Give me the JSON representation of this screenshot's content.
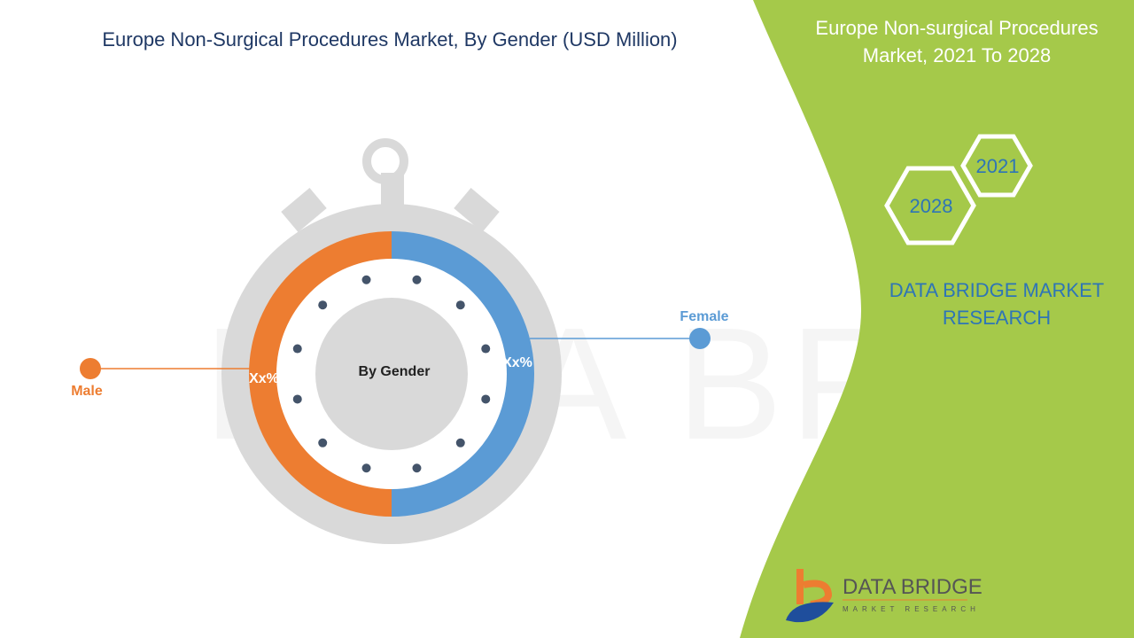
{
  "header": {
    "title": "Europe Non-Surgical Procedures Market, By Gender  (USD Million)"
  },
  "side_panel": {
    "title": "Europe Non-surgical Procedures Market, 2021 To 2028",
    "years": [
      "2021",
      "2028"
    ],
    "brand_text": "DATA BRIDGE MARKET RESEARCH",
    "logo": {
      "name": "DATA BRIDGE",
      "tagline": "MARKET RESEARCH"
    },
    "color": "#a5c94a"
  },
  "watermark": "DATA BRIDGE",
  "chart_data": {
    "type": "pie",
    "style": "donut",
    "center_label": "By Gender",
    "categories": [
      "Male",
      "Female"
    ],
    "values": [
      50,
      50
    ],
    "data_labels": [
      "Xx%",
      "Xx%"
    ],
    "colors": [
      "#ed7d31",
      "#5b9bd5"
    ],
    "legend": "callouts"
  }
}
